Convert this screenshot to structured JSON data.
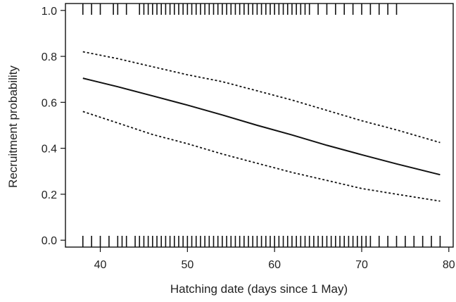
{
  "chart_data": {
    "type": "line",
    "title": "",
    "xlabel": "Hatching date (days since 1 May)",
    "ylabel": "Recruitment probability",
    "xlim": [
      36,
      80.5
    ],
    "ylim": [
      -0.03,
      1.03
    ],
    "x_ticks": [
      40,
      50,
      60,
      70,
      80
    ],
    "x_tick_labels": [
      "40",
      "50",
      "60",
      "70",
      "80"
    ],
    "y_ticks": [
      0.0,
      0.2,
      0.4,
      0.6,
      0.8,
      1.0
    ],
    "y_tick_labels": [
      "0.0",
      "0.2",
      "0.4",
      "0.6",
      "0.8",
      "1.0"
    ],
    "grid": false,
    "legend": "none",
    "series": [
      {
        "role": "fit",
        "style": "solid",
        "x": [
          38,
          42,
          46,
          50,
          54,
          58,
          62,
          66,
          70,
          74,
          79
        ],
        "y": [
          0.705,
          0.668,
          0.628,
          0.588,
          0.545,
          0.5,
          0.458,
          0.413,
          0.372,
          0.332,
          0.285
        ]
      },
      {
        "role": "upper-ci",
        "style": "dotted",
        "x": [
          38,
          42,
          46,
          50,
          54,
          58,
          62,
          66,
          70,
          74,
          79
        ],
        "y": [
          0.82,
          0.79,
          0.755,
          0.72,
          0.69,
          0.65,
          0.61,
          0.565,
          0.52,
          0.48,
          0.425
        ]
      },
      {
        "role": "lower-ci",
        "style": "dotted",
        "x": [
          38,
          42,
          46,
          50,
          54,
          58,
          62,
          66,
          70,
          74,
          79
        ],
        "y": [
          0.56,
          0.51,
          0.46,
          0.42,
          0.375,
          0.335,
          0.295,
          0.26,
          0.225,
          0.2,
          0.17
        ]
      }
    ],
    "rug_top": [
      38,
      39,
      40,
      41.5,
      42,
      43,
      44.5,
      45,
      45.5,
      46,
      46.5,
      47,
      47.5,
      48,
      48.5,
      49,
      49.5,
      50,
      50.5,
      51,
      51.5,
      52,
      52.5,
      53,
      53.5,
      54,
      54.5,
      55,
      55.5,
      56,
      56.5,
      57,
      57.5,
      58,
      58.5,
      59,
      59.5,
      60,
      60.5,
      61,
      61.5,
      62,
      62.5,
      63,
      63.5,
      64,
      65,
      66,
      67,
      68,
      69,
      70,
      71,
      72,
      73,
      74
    ],
    "rug_bottom": [
      38,
      39,
      40,
      41,
      42,
      42.5,
      43,
      44,
      44.5,
      45,
      45.5,
      46,
      46.5,
      47,
      47.5,
      48,
      48.5,
      49,
      49.5,
      50,
      50.5,
      51,
      51.5,
      52,
      52.5,
      53,
      53.5,
      54,
      54.5,
      55,
      55.5,
      56,
      56.5,
      57,
      57.5,
      58,
      58.5,
      59,
      59.5,
      60,
      60.5,
      61,
      61.5,
      62,
      62.5,
      63,
      63.5,
      64,
      64.5,
      65,
      65.5,
      66,
      66.5,
      67,
      67.5,
      68,
      68.5,
      69,
      69.5,
      70,
      70.5,
      71,
      72,
      73,
      74,
      75,
      76,
      77,
      78,
      79
    ]
  }
}
